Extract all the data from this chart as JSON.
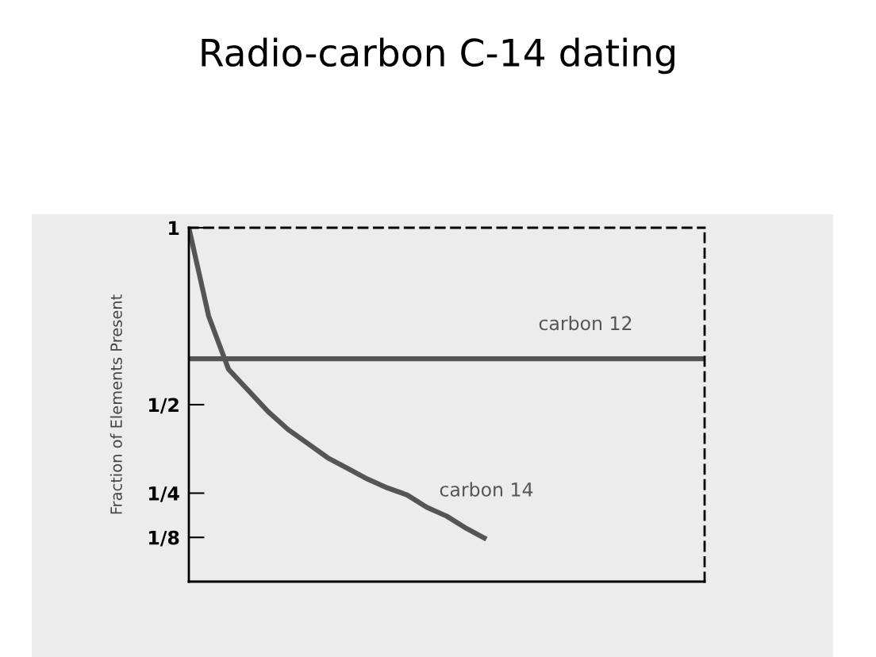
{
  "chart_data": {
    "type": "line",
    "title": "Radio-carbon C-14 dating",
    "ylabel": "Fraction of Elements Present",
    "categories": [
      null,
      null,
      null,
      null,
      null,
      null,
      null,
      null,
      null,
      null,
      null,
      null,
      null,
      null,
      null,
      null,
      null,
      null,
      null,
      null,
      null,
      null,
      null,
      null,
      null,
      null,
      null
    ],
    "series": [
      {
        "name": "carbon 12",
        "color": "#555555",
        "values": [
          0.63,
          0.63,
          0.63,
          0.63,
          0.63,
          0.63,
          0.63,
          0.63,
          0.63,
          0.63,
          0.63,
          0.63,
          0.63,
          0.63,
          0.63,
          0.63,
          0.63,
          0.63,
          0.63,
          0.63,
          0.63,
          0.63,
          0.63,
          0.63,
          0.63,
          0.63,
          0.63
        ]
      },
      {
        "name": "carbon 14",
        "color": "#555555",
        "values": [
          1.0,
          0.75,
          0.6,
          0.54,
          0.48,
          0.43,
          0.39,
          0.35,
          0.32,
          0.29,
          0.265,
          0.245,
          0.21,
          0.185,
          0.15,
          0.12,
          null,
          null,
          null,
          null,
          null,
          null,
          null,
          null,
          null,
          null,
          null
        ]
      }
    ],
    "ylim": [
      0,
      1
    ],
    "yticks": [
      {
        "value": 1,
        "label": "1"
      },
      {
        "value": 0.5,
        "label": "1/2"
      },
      {
        "value": 0.25,
        "label": "1/4"
      },
      {
        "value": 0.125,
        "label": "1/8"
      }
    ],
    "grid": false,
    "legend": false,
    "marker": "none",
    "line_style": "solid"
  }
}
